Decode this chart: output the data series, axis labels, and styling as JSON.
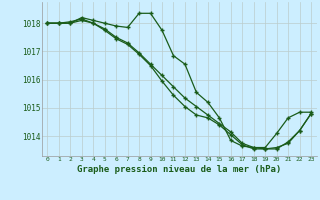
{
  "background_color": "#cceeff",
  "grid_color": "#bbcccc",
  "line_color": "#1a5c1a",
  "title": "Graphe pression niveau de la mer (hPa)",
  "xlim": [
    -0.5,
    23.5
  ],
  "ylim": [
    1013.3,
    1018.75
  ],
  "yticks": [
    1014,
    1015,
    1016,
    1017,
    1018
  ],
  "xticks": [
    0,
    1,
    2,
    3,
    4,
    5,
    6,
    7,
    8,
    9,
    10,
    11,
    12,
    13,
    14,
    15,
    16,
    17,
    18,
    19,
    20,
    21,
    22,
    23
  ],
  "series": [
    [
      1018.0,
      1018.0,
      1018.0,
      1018.2,
      1018.1,
      1018.0,
      1017.9,
      1017.85,
      1018.35,
      1018.35,
      1017.75,
      1016.85,
      1016.55,
      1015.55,
      1015.2,
      1014.65,
      1013.85,
      1013.65,
      1013.6,
      1013.6,
      1014.1,
      1014.65,
      1014.85,
      1014.85
    ],
    [
      1018.0,
      1018.0,
      1018.0,
      1018.1,
      1018.0,
      1017.8,
      1017.5,
      1017.3,
      1016.95,
      1016.55,
      1016.15,
      1015.75,
      1015.35,
      1015.05,
      1014.75,
      1014.45,
      1014.15,
      1013.75,
      1013.6,
      1013.55,
      1013.6,
      1013.75,
      1014.2,
      1014.8
    ],
    [
      1018.0,
      1018.0,
      1018.05,
      1018.15,
      1018.0,
      1017.75,
      1017.45,
      1017.25,
      1016.9,
      1016.5,
      1015.95,
      1015.45,
      1015.05,
      1014.75,
      1014.65,
      1014.4,
      1014.05,
      1013.7,
      1013.55,
      1013.55,
      1013.55,
      1013.8,
      1014.2,
      1014.8
    ]
  ]
}
